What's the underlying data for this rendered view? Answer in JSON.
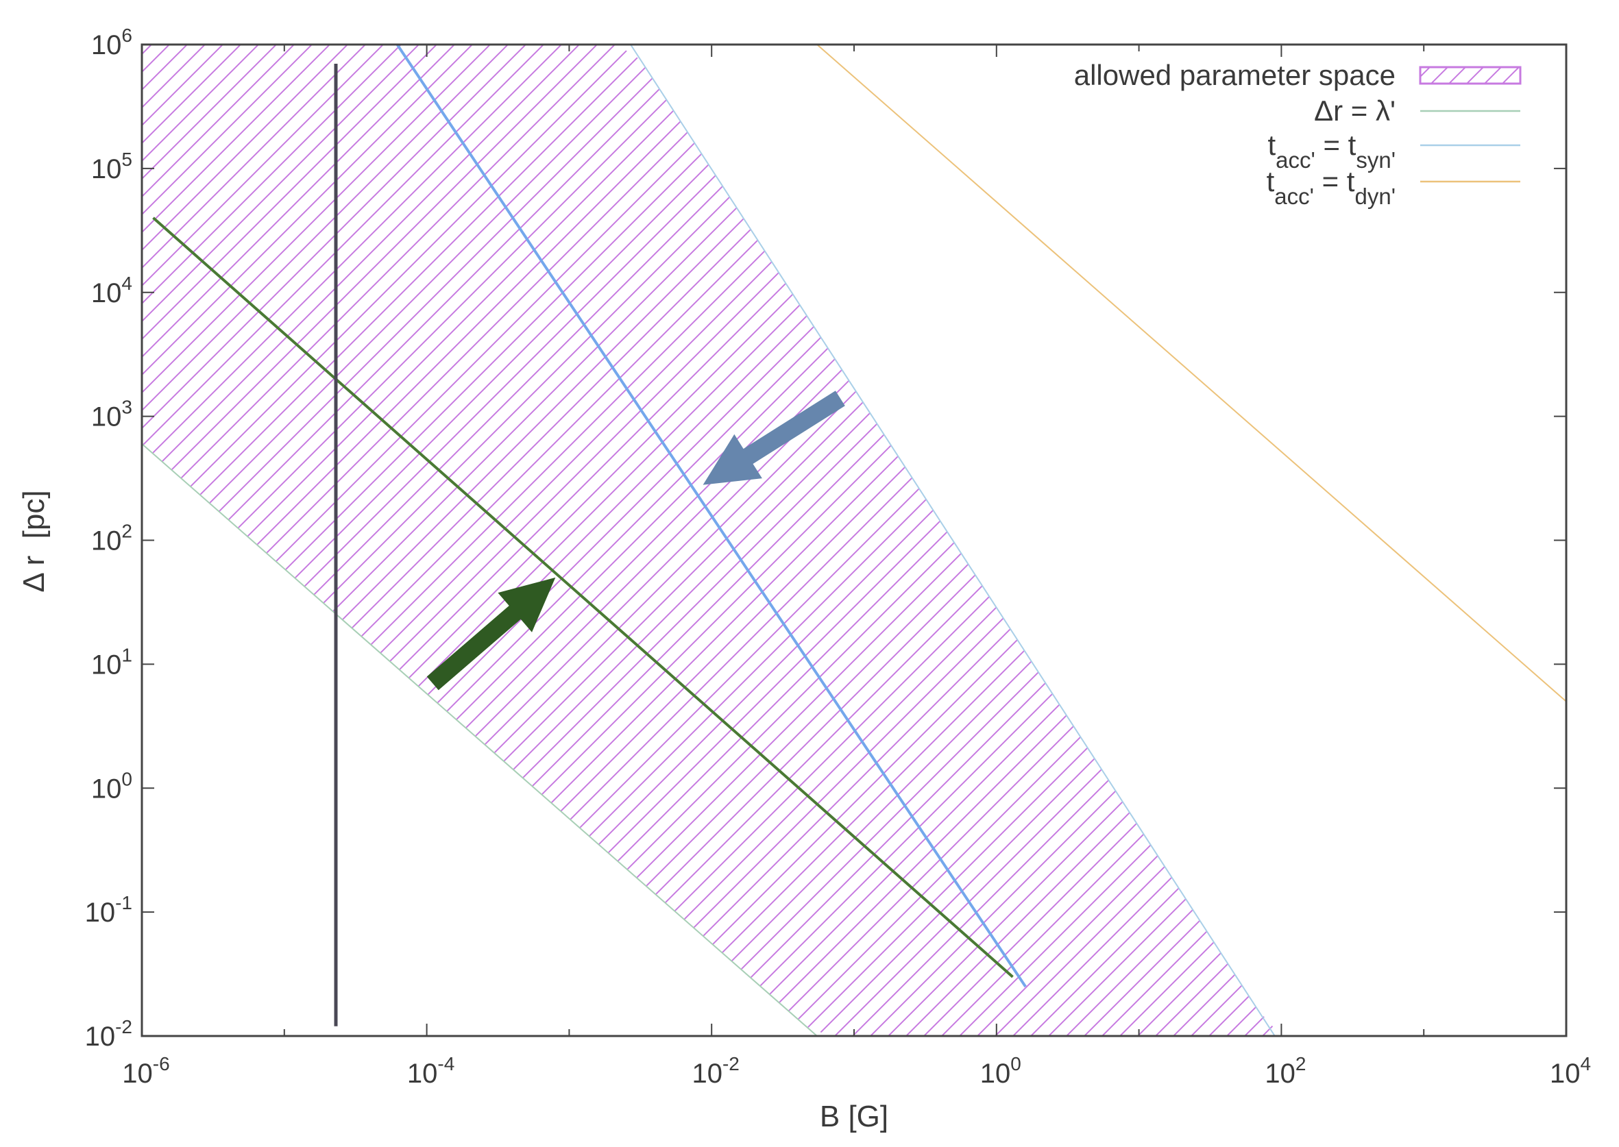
{
  "chart_data": {
    "type": "line",
    "scale": {
      "x": "log",
      "y": "log"
    },
    "xlabel": "B [G]",
    "ylabel": "Δ r  [pc]",
    "xlim": [
      1e-06,
      10000.0
    ],
    "ylim": [
      0.01,
      1000000.0
    ],
    "grid": false,
    "legend_position": "top-right",
    "x_ticks": [
      {
        "value": 1e-06,
        "base": "10",
        "exp": "-6"
      },
      {
        "value": 0.0001,
        "base": "10",
        "exp": "-4"
      },
      {
        "value": 0.01,
        "base": "10",
        "exp": "-2"
      },
      {
        "value": 1,
        "base": "10",
        "exp": "0"
      },
      {
        "value": 100.0,
        "base": "10",
        "exp": "2"
      },
      {
        "value": 10000.0,
        "base": "10",
        "exp": "4"
      }
    ],
    "y_ticks": [
      {
        "value": 0.01,
        "base": "10",
        "exp": "-2"
      },
      {
        "value": 0.1,
        "base": "10",
        "exp": "-1"
      },
      {
        "value": 1,
        "base": "10",
        "exp": "0"
      },
      {
        "value": 10.0,
        "base": "10",
        "exp": "1"
      },
      {
        "value": 100.0,
        "base": "10",
        "exp": "2"
      },
      {
        "value": 1000.0,
        "base": "10",
        "exp": "3"
      },
      {
        "value": 10000.0,
        "base": "10",
        "exp": "4"
      },
      {
        "value": 100000.0,
        "base": "10",
        "exp": "5"
      },
      {
        "value": 1000000.0,
        "base": "10",
        "exp": "6"
      }
    ],
    "region": {
      "name": "allowed parameter space",
      "color": "#c77ae0",
      "lower_boundary": [
        [
          1e-06,
          600
        ],
        [
          0.055,
          0.01
        ]
      ],
      "upper_boundary": [
        [
          0.0027,
          1000000.0
        ],
        [
          90,
          0.01
        ]
      ]
    },
    "series": [
      {
        "key": "lambda",
        "name": "Δr = λ'",
        "color": "#a8cfb6",
        "width": 2,
        "points": [
          [
            1e-06,
            600
          ],
          [
            0.055,
            0.01
          ]
        ]
      },
      {
        "key": "syn",
        "name": "tacc' = tsyn'",
        "color": "#a9cfe8",
        "width": 2,
        "points": [
          [
            0.0027,
            1000000.0
          ],
          [
            90,
            0.01
          ]
        ]
      },
      {
        "key": "dyn",
        "name": "tacc' = tdyn'",
        "color": "#ecc27a",
        "width": 2,
        "points": [
          [
            0.055,
            1000000.0
          ],
          [
            10000.0,
            5
          ]
        ]
      },
      {
        "key": "green",
        "name": "",
        "color": "#4a7a34",
        "width": 4,
        "points": [
          [
            1.2e-06,
            40000
          ],
          [
            1.3,
            0.03
          ]
        ]
      },
      {
        "key": "blue",
        "name": "",
        "color": "#74a8ec",
        "width": 4,
        "points": [
          [
            6.2e-05,
            1000000.0
          ],
          [
            1.6,
            0.025
          ]
        ]
      },
      {
        "key": "vertical",
        "name": "",
        "color": "#4a4855",
        "width": 5,
        "points": [
          [
            2.3e-05,
            700000.0
          ],
          [
            2.3e-05,
            0.012
          ]
        ]
      }
    ],
    "legend": [
      {
        "label": "allowed parameter space",
        "symbol": "hatch",
        "color": "#c77ae0"
      },
      {
        "label": "Δr = λ'",
        "symbol": "line",
        "color": "#a8cfb6"
      },
      {
        "label_parts": [
          [
            "t",
            ""
          ],
          [
            "acc'",
            "sub"
          ],
          [
            " = t",
            ""
          ],
          [
            "syn'",
            "sub"
          ]
        ],
        "symbol": "line",
        "color": "#a9cfe8"
      },
      {
        "label_parts": [
          [
            "t",
            ""
          ],
          [
            "acc'",
            "sub"
          ],
          [
            " = t",
            ""
          ],
          [
            "dyn'",
            "sub"
          ]
        ],
        "symbol": "line",
        "color": "#ecc27a"
      }
    ],
    "annotations": [
      {
        "kind": "arrow",
        "color": "#2f5a22",
        "from": [
          0.00011,
          7
        ],
        "to": [
          0.0008,
          50
        ]
      },
      {
        "kind": "arrow",
        "color": "#6686ad",
        "from": [
          0.08,
          1400
        ],
        "to": [
          0.0087,
          280
        ]
      }
    ]
  }
}
